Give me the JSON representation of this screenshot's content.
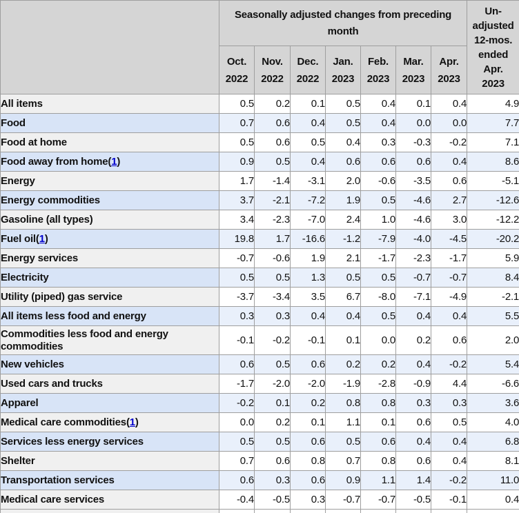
{
  "colors": {
    "header_bg": "#d5d5d5",
    "border": "#9e9e9e",
    "text": "#111111",
    "link": "#0000cc",
    "row_bg": "#ffffff",
    "row_label_bg": "#f0f0f0",
    "row_alt_bg": "#e9f0fb",
    "row_alt_label_bg": "#d8e4f7"
  },
  "chart_data": {
    "type": "table",
    "group_header": "Seasonally adjusted changes from preceding\nmonth",
    "unadjusted_header": "Un-\nadjusted\n12-mos.\nended\nApr.\n2023",
    "month_headers": [
      "Oct.\n2022",
      "Nov.\n2022",
      "Dec.\n2022",
      "Jan.\n2023",
      "Feb.\n2023",
      "Mar.\n2023",
      "Apr.\n2023"
    ],
    "columns_flat": [
      "Oct. 2022",
      "Nov. 2022",
      "Dec. 2022",
      "Jan. 2023",
      "Feb. 2023",
      "Mar. 2023",
      "Apr. 2023",
      "Un-adjusted 12-mos. ended Apr. 2023"
    ],
    "rows": [
      {
        "label": "All items",
        "indent": 0,
        "footnote": "",
        "values": [
          "0.5",
          "0.2",
          "0.1",
          "0.5",
          "0.4",
          "0.1",
          "0.4",
          "4.9"
        ]
      },
      {
        "label": "Food",
        "indent": 1,
        "footnote": "",
        "values": [
          "0.7",
          "0.6",
          "0.4",
          "0.5",
          "0.4",
          "0.0",
          "0.0",
          "7.7"
        ]
      },
      {
        "label": "Food at home",
        "indent": 2,
        "footnote": "",
        "values": [
          "0.5",
          "0.6",
          "0.5",
          "0.4",
          "0.3",
          "-0.3",
          "-0.2",
          "7.1"
        ]
      },
      {
        "label": "Food away from home",
        "indent": 2,
        "footnote": "1",
        "values": [
          "0.9",
          "0.5",
          "0.4",
          "0.6",
          "0.6",
          "0.6",
          "0.4",
          "8.6"
        ]
      },
      {
        "label": "Energy",
        "indent": 1,
        "footnote": "",
        "values": [
          "1.7",
          "-1.4",
          "-3.1",
          "2.0",
          "-0.6",
          "-3.5",
          "0.6",
          "-5.1"
        ]
      },
      {
        "label": "Energy commodities",
        "indent": 2,
        "footnote": "",
        "values": [
          "3.7",
          "-2.1",
          "-7.2",
          "1.9",
          "0.5",
          "-4.6",
          "2.7",
          "-12.6"
        ]
      },
      {
        "label": "Gasoline (all types)",
        "indent": 3,
        "footnote": "",
        "values": [
          "3.4",
          "-2.3",
          "-7.0",
          "2.4",
          "1.0",
          "-4.6",
          "3.0",
          "-12.2"
        ]
      },
      {
        "label": "Fuel oil",
        "indent": 3,
        "footnote": "1",
        "values": [
          "19.8",
          "1.7",
          "-16.6",
          "-1.2",
          "-7.9",
          "-4.0",
          "-4.5",
          "-20.2"
        ]
      },
      {
        "label": "Energy services",
        "indent": 2,
        "footnote": "",
        "values": [
          "-0.7",
          "-0.6",
          "1.9",
          "2.1",
          "-1.7",
          "-2.3",
          "-1.7",
          "5.9"
        ]
      },
      {
        "label": "Electricity",
        "indent": 3,
        "footnote": "",
        "values": [
          "0.5",
          "0.5",
          "1.3",
          "0.5",
          "0.5",
          "-0.7",
          "-0.7",
          "8.4"
        ]
      },
      {
        "label": "Utility (piped) gas service",
        "indent": 3,
        "footnote": "",
        "values": [
          "-3.7",
          "-3.4",
          "3.5",
          "6.7",
          "-8.0",
          "-7.1",
          "-4.9",
          "-2.1"
        ]
      },
      {
        "label": "All items less food and energy",
        "indent": 1,
        "footnote": "",
        "values": [
          "0.3",
          "0.3",
          "0.4",
          "0.4",
          "0.5",
          "0.4",
          "0.4",
          "5.5"
        ]
      },
      {
        "label": "Commodities less food and energy commodities",
        "indent": 2,
        "footnote": "",
        "values": [
          "-0.1",
          "-0.2",
          "-0.1",
          "0.1",
          "0.0",
          "0.2",
          "0.6",
          "2.0"
        ]
      },
      {
        "label": "New vehicles",
        "indent": 3,
        "footnote": "",
        "values": [
          "0.6",
          "0.5",
          "0.6",
          "0.2",
          "0.2",
          "0.4",
          "-0.2",
          "5.4"
        ]
      },
      {
        "label": "Used cars and trucks",
        "indent": 3,
        "footnote": "",
        "values": [
          "-1.7",
          "-2.0",
          "-2.0",
          "-1.9",
          "-2.8",
          "-0.9",
          "4.4",
          "-6.6"
        ]
      },
      {
        "label": "Apparel",
        "indent": 3,
        "footnote": "",
        "values": [
          "-0.2",
          "0.1",
          "0.2",
          "0.8",
          "0.8",
          "0.3",
          "0.3",
          "3.6"
        ]
      },
      {
        "label": "Medical care commodities",
        "indent": 3,
        "footnote": "1",
        "values": [
          "0.0",
          "0.2",
          "0.1",
          "1.1",
          "0.1",
          "0.6",
          "0.5",
          "4.0"
        ]
      },
      {
        "label": "Services less energy services",
        "indent": 2,
        "footnote": "",
        "values": [
          "0.5",
          "0.5",
          "0.6",
          "0.5",
          "0.6",
          "0.4",
          "0.4",
          "6.8"
        ]
      },
      {
        "label": "Shelter",
        "indent": 3,
        "footnote": "",
        "values": [
          "0.7",
          "0.6",
          "0.8",
          "0.7",
          "0.8",
          "0.6",
          "0.4",
          "8.1"
        ]
      },
      {
        "label": "Transportation services",
        "indent": 3,
        "footnote": "",
        "values": [
          "0.6",
          "0.3",
          "0.6",
          "0.9",
          "1.1",
          "1.4",
          "-0.2",
          "11.0"
        ]
      },
      {
        "label": "Medical care services",
        "indent": 3,
        "footnote": "",
        "values": [
          "-0.4",
          "-0.5",
          "0.3",
          "-0.7",
          "-0.7",
          "-0.5",
          "-0.1",
          "0.4"
        ]
      }
    ]
  }
}
